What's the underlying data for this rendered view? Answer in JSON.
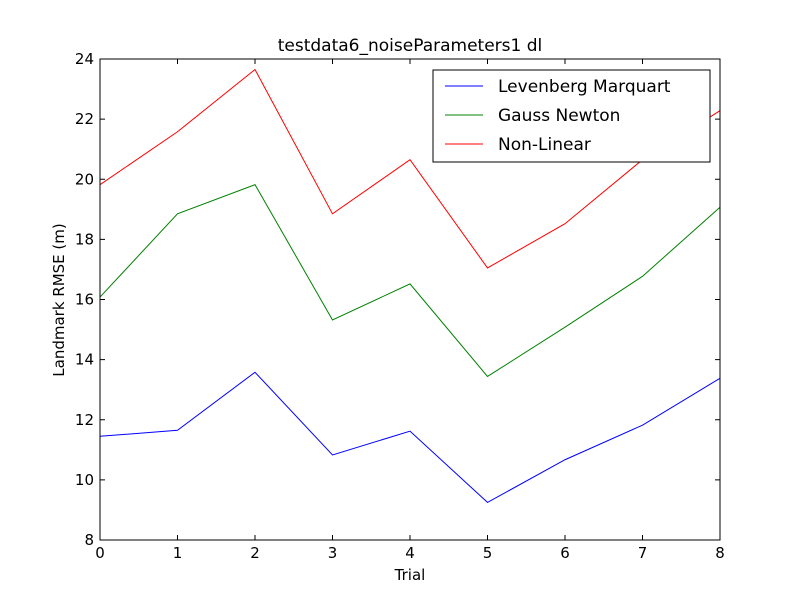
{
  "chart_data": {
    "type": "line",
    "title": "testdata6_noiseParameters1 dl",
    "xlabel": "Trial",
    "ylabel": "Landmark RMSE (m)",
    "x": [
      0,
      1,
      2,
      3,
      4,
      5,
      6,
      7,
      8
    ],
    "xlim": [
      0,
      8
    ],
    "ylim": [
      8,
      24
    ],
    "xticks": [
      0,
      1,
      2,
      3,
      4,
      5,
      6,
      7,
      8
    ],
    "yticks": [
      8,
      10,
      12,
      14,
      16,
      18,
      20,
      22,
      24
    ],
    "grid": false,
    "legend_position": "top-right",
    "series": [
      {
        "name": "Levenberg Marquart",
        "color": "#0000ff",
        "values": [
          11.45,
          11.65,
          13.58,
          10.83,
          11.62,
          9.25,
          10.67,
          11.82,
          13.38
        ]
      },
      {
        "name": "Gauss Newton",
        "color": "#008000",
        "values": [
          16.08,
          18.85,
          19.82,
          15.32,
          16.52,
          13.44,
          15.08,
          16.77,
          19.07
        ]
      },
      {
        "name": "Non-Linear",
        "color": "#ff0000",
        "values": [
          19.82,
          21.58,
          23.65,
          18.85,
          20.65,
          17.05,
          18.52,
          20.65,
          22.28
        ]
      }
    ]
  }
}
